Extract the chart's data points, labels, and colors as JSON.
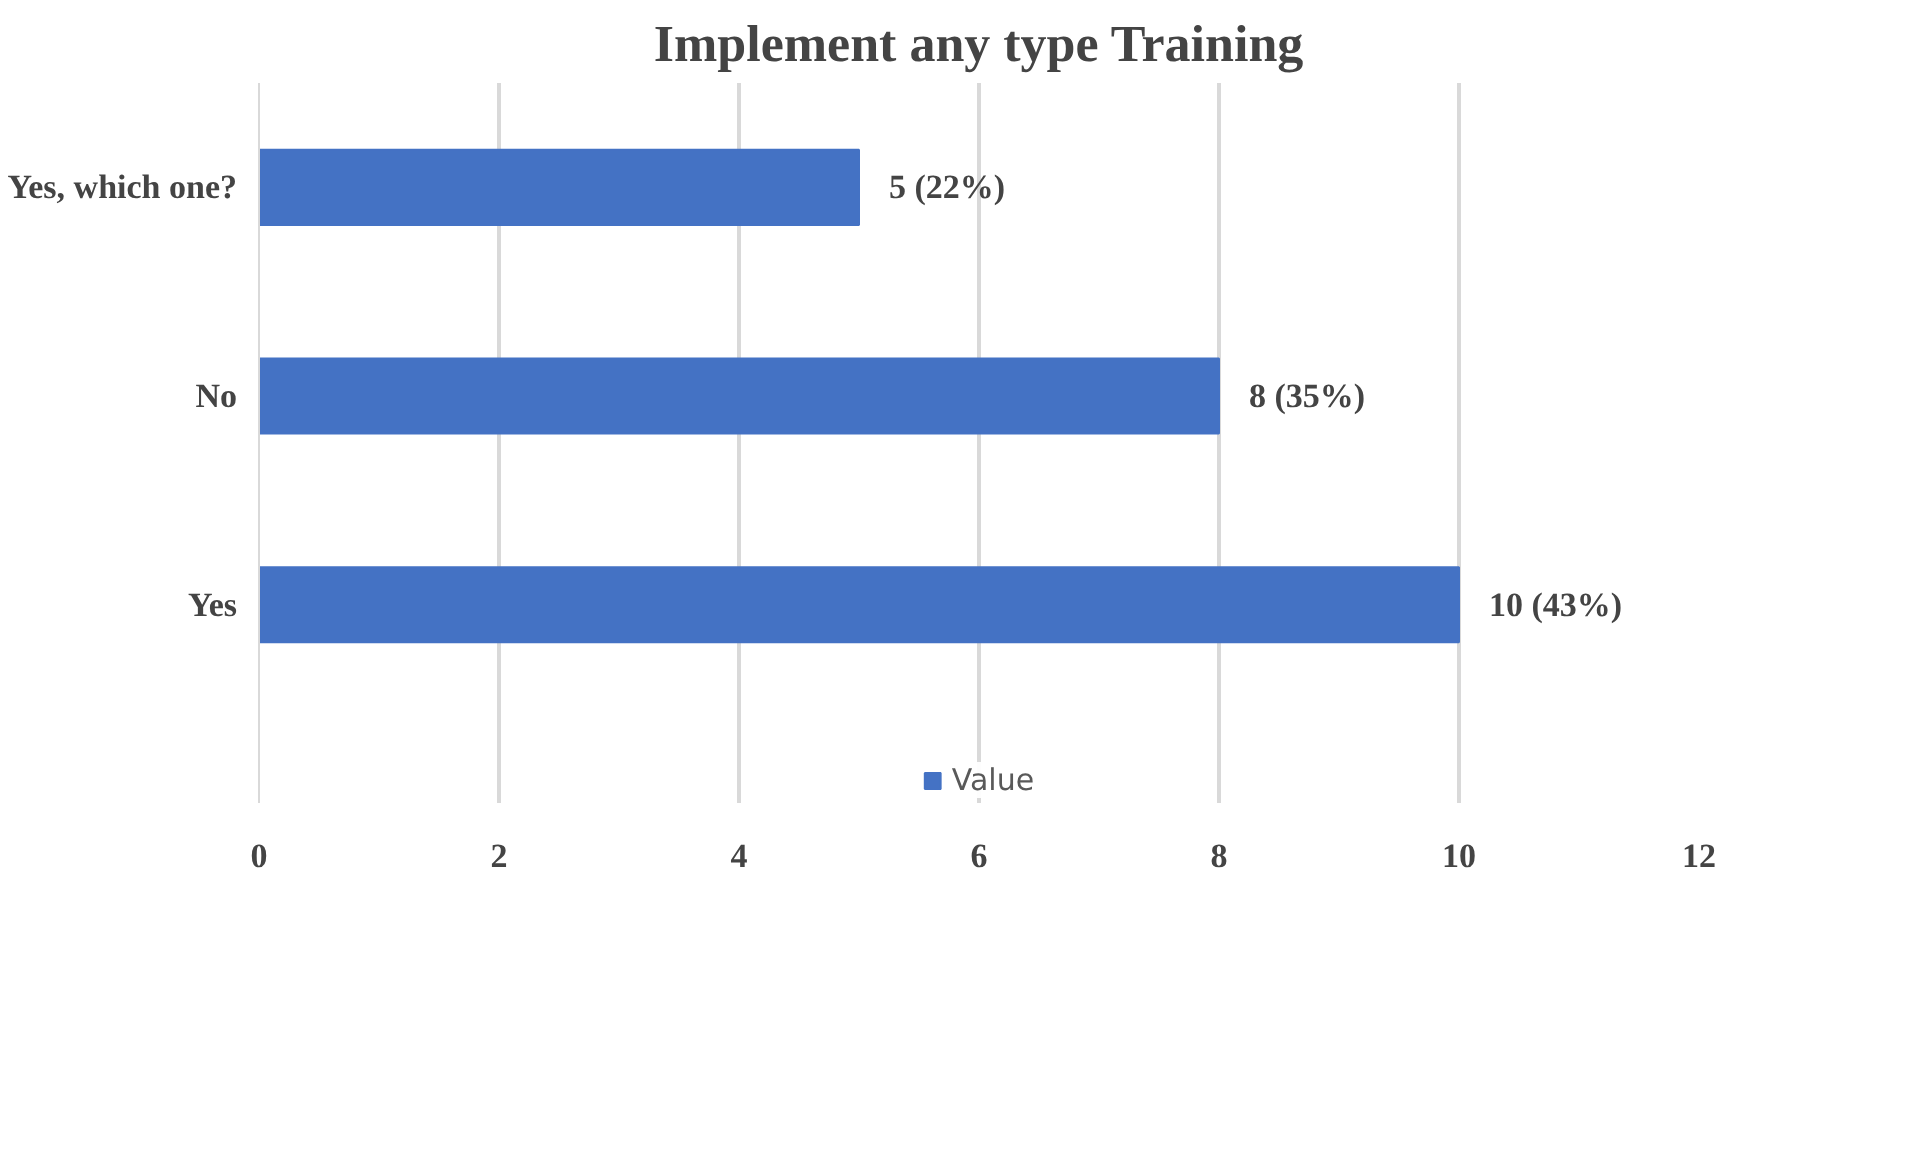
{
  "chart_data": {
    "type": "bar",
    "orientation": "horizontal",
    "title": "Implement any type Training",
    "categories": [
      "Yes, which one?",
      "No",
      "Yes"
    ],
    "series": [
      {
        "name": "Value",
        "color": "#4472c4",
        "values": [
          5,
          8,
          10
        ],
        "value_labels": [
          "5 (22%)",
          "8 (35%)",
          "10 (43%)"
        ]
      }
    ],
    "xlim": [
      0,
      12
    ],
    "xticks": [
      0,
      2,
      4,
      6,
      8,
      10,
      12
    ],
    "grid": "x",
    "legend": "bottom"
  }
}
